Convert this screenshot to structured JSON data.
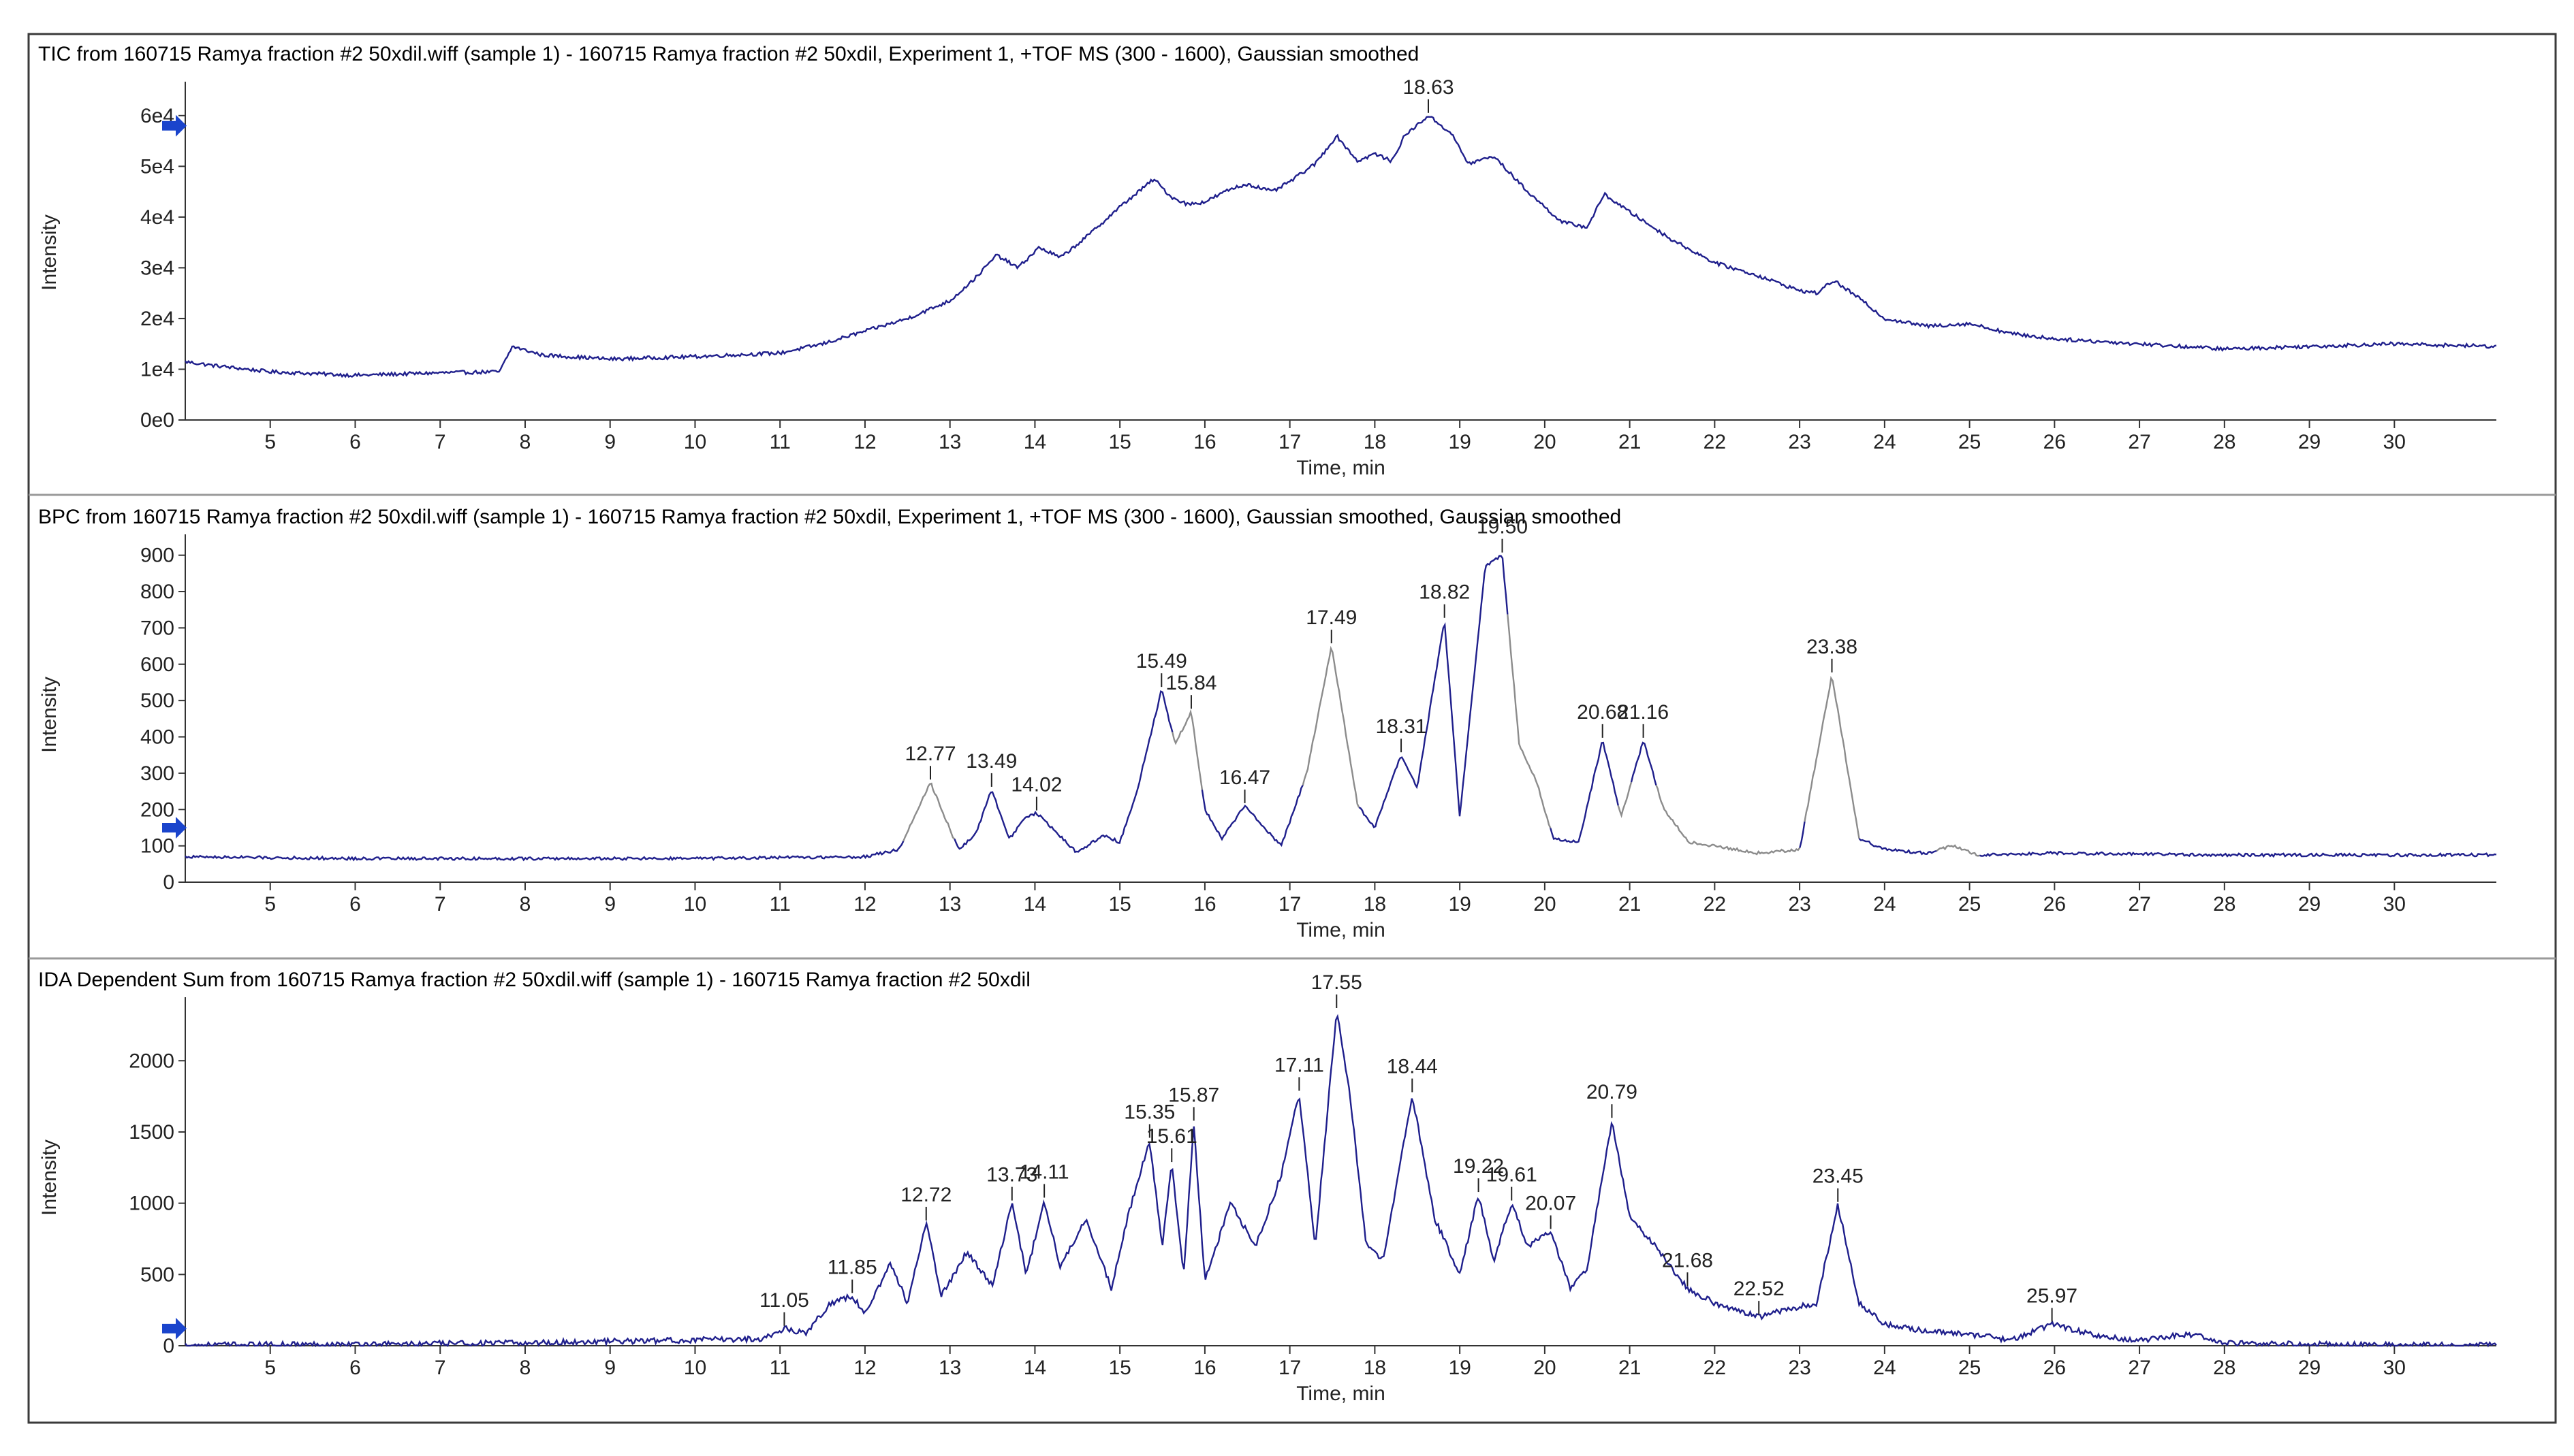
{
  "colors": {
    "trace": "#1f1f8c",
    "trace_alt": "#8c8c8c",
    "frame": "#3a3a3a",
    "marker": "#1a44cc"
  },
  "chart_data": [
    {
      "type": "line",
      "title": "TIC from 160715 Ramya fraction #2 50xdil.wiff (sample 1) - 160715 Ramya fraction #2 50xdil, Experiment 1, +TOF MS (300 - 1600), Gaussian smoothed",
      "xlabel": "Time, min",
      "ylabel": "Intensity",
      "xlim": [
        4.0,
        31.2
      ],
      "ylim": [
        0,
        64000
      ],
      "xticks": [
        "5",
        "6",
        "7",
        "8",
        "9",
        "10",
        "11",
        "12",
        "13",
        "14",
        "15",
        "16",
        "17",
        "18",
        "19",
        "20",
        "21",
        "22",
        "23",
        "24",
        "25",
        "26",
        "27",
        "28",
        "29",
        "30"
      ],
      "yticks": [
        {
          "v": 0,
          "t": "0e0"
        },
        {
          "v": 10000,
          "t": "1e4"
        },
        {
          "v": 20000,
          "t": "2e4"
        },
        {
          "v": 30000,
          "t": "3e4"
        },
        {
          "v": 40000,
          "t": "4e4"
        },
        {
          "v": 50000,
          "t": "5e4"
        },
        {
          "v": 60000,
          "t": "6e4"
        }
      ],
      "marker_value": 58000,
      "noise": 350,
      "series": [
        {
          "name": "TIC",
          "style": "plain",
          "x": [
            4.0,
            4.3,
            5.0,
            6.0,
            7.0,
            7.7,
            7.85,
            8.2,
            9.0,
            10.0,
            11.0,
            11.5,
            12.0,
            12.5,
            13.0,
            13.3,
            13.55,
            13.8,
            14.05,
            14.3,
            14.6,
            15.0,
            15.4,
            15.6,
            15.8,
            16.0,
            16.3,
            16.5,
            16.8,
            17.0,
            17.3,
            17.55,
            17.8,
            18.0,
            18.2,
            18.35,
            18.63,
            18.9,
            19.1,
            19.4,
            19.8,
            20.2,
            20.5,
            20.7,
            21.0,
            21.5,
            22.0,
            22.5,
            23.0,
            23.2,
            23.4,
            23.7,
            24.0,
            24.5,
            25.0,
            25.5,
            26.0,
            27.0,
            28.0,
            29.0,
            30.0,
            31.2
          ],
          "y": [
            11500,
            10800,
            9500,
            8800,
            9300,
            9500,
            14500,
            12800,
            12000,
            12500,
            13200,
            15000,
            17500,
            20000,
            23500,
            28000,
            32500,
            30000,
            34000,
            32000,
            36000,
            42000,
            47500,
            44000,
            42500,
            43000,
            45500,
            46500,
            45000,
            47000,
            50500,
            56000,
            51000,
            52500,
            51000,
            56000,
            60000,
            56500,
            50500,
            52000,
            45000,
            39000,
            38000,
            44500,
            41000,
            35500,
            31000,
            28500,
            25500,
            25000,
            27500,
            24000,
            20000,
            18500,
            19000,
            17000,
            16000,
            15000,
            14000,
            14500,
            15000,
            14500
          ]
        }
      ],
      "peaks": [
        {
          "x": 18.63,
          "y": 60000,
          "label": "18.63"
        }
      ]
    },
    {
      "type": "line",
      "title": "BPC from 160715 Ramya fraction #2 50xdil.wiff (sample 1) - 160715 Ramya fraction #2 50xdil, Experiment 1, +TOF MS (300 - 1600), Gaussian smoothed, Gaussian smoothed",
      "xlabel": "Time, min",
      "ylabel": "Intensity",
      "xlim": [
        4.0,
        31.2
      ],
      "ylim": [
        0,
        920
      ],
      "xticks": [
        "5",
        "6",
        "7",
        "8",
        "9",
        "10",
        "11",
        "12",
        "13",
        "14",
        "15",
        "16",
        "17",
        "18",
        "19",
        "20",
        "21",
        "22",
        "23",
        "24",
        "25",
        "26",
        "27",
        "28",
        "29",
        "30"
      ],
      "yticks": [
        {
          "v": 0,
          "t": "0"
        },
        {
          "v": 100,
          "t": "100"
        },
        {
          "v": 200,
          "t": "200"
        },
        {
          "v": 300,
          "t": "300"
        },
        {
          "v": 400,
          "t": "400"
        },
        {
          "v": 500,
          "t": "500"
        },
        {
          "v": 600,
          "t": "600"
        },
        {
          "v": 700,
          "t": "700"
        },
        {
          "v": 800,
          "t": "800"
        },
        {
          "v": 900,
          "t": "900"
        }
      ],
      "marker_value": 150,
      "noise": 4,
      "series": [
        {
          "name": "BPC",
          "style": "grey_peaks",
          "x": [
            4.0,
            6.0,
            8.0,
            10.0,
            12.0,
            12.4,
            12.77,
            13.1,
            13.3,
            13.49,
            13.7,
            13.9,
            14.02,
            14.2,
            14.5,
            14.8,
            15.0,
            15.2,
            15.49,
            15.65,
            15.84,
            16.0,
            16.2,
            16.47,
            16.7,
            16.9,
            17.2,
            17.49,
            17.8,
            18.0,
            18.31,
            18.5,
            18.7,
            18.82,
            19.0,
            19.3,
            19.5,
            19.7,
            19.9,
            20.1,
            20.4,
            20.68,
            20.9,
            21.16,
            21.4,
            21.7,
            22.0,
            22.5,
            23.0,
            23.38,
            23.7,
            24.0,
            24.5,
            24.8,
            25.1,
            26.0,
            28.0,
            31.2
          ],
          "y": [
            70,
            65,
            65,
            65,
            70,
            90,
            275,
            90,
            130,
            255,
            120,
            180,
            190,
            150,
            80,
            130,
            110,
            250,
            530,
            380,
            470,
            200,
            120,
            210,
            150,
            100,
            300,
            650,
            210,
            150,
            350,
            260,
            550,
            720,
            180,
            870,
            900,
            380,
            280,
            120,
            110,
            390,
            180,
            390,
            200,
            110,
            100,
            80,
            90,
            570,
            120,
            90,
            80,
            100,
            75,
            80,
            75,
            75
          ]
        }
      ],
      "peaks": [
        {
          "x": 12.77,
          "y": 275,
          "label": "12.77"
        },
        {
          "x": 13.49,
          "y": 255,
          "label": "13.49"
        },
        {
          "x": 14.02,
          "y": 190,
          "label": "14.02"
        },
        {
          "x": 15.49,
          "y": 530,
          "label": "15.49"
        },
        {
          "x": 15.84,
          "y": 470,
          "label": "15.84"
        },
        {
          "x": 16.47,
          "y": 210,
          "label": "16.47"
        },
        {
          "x": 17.49,
          "y": 650,
          "label": "17.49"
        },
        {
          "x": 18.31,
          "y": 350,
          "label": "18.31"
        },
        {
          "x": 18.82,
          "y": 720,
          "label": "18.82"
        },
        {
          "x": 19.5,
          "y": 900,
          "label": "19.50"
        },
        {
          "x": 20.68,
          "y": 390,
          "label": "20.68"
        },
        {
          "x": 21.16,
          "y": 390,
          "label": "21.16"
        },
        {
          "x": 23.38,
          "y": 570,
          "label": "23.38"
        }
      ]
    },
    {
      "type": "line",
      "title": "IDA Dependent Sum from 160715 Ramya fraction #2 50xdil.wiff (sample 1) - 160715 Ramya fraction #2 50xdil",
      "xlabel": "Time, min",
      "ylabel": "Intensity",
      "xlim": [
        4.0,
        31.2
      ],
      "ylim": [
        0,
        2350
      ],
      "xticks": [
        "5",
        "6",
        "7",
        "8",
        "9",
        "10",
        "11",
        "12",
        "13",
        "14",
        "15",
        "16",
        "17",
        "18",
        "19",
        "20",
        "21",
        "22",
        "23",
        "24",
        "25",
        "26",
        "27",
        "28",
        "29",
        "30"
      ],
      "yticks": [
        {
          "v": 0,
          "t": "0"
        },
        {
          "v": 500,
          "t": "500"
        },
        {
          "v": 1000,
          "t": "1000"
        },
        {
          "v": 1500,
          "t": "1500"
        },
        {
          "v": 2000,
          "t": "2000"
        }
      ],
      "marker_value": 120,
      "noise": 20,
      "series": [
        {
          "name": "IDA",
          "style": "spiky",
          "x": [
            4.0,
            6.0,
            8.0,
            9.0,
            10.0,
            10.8,
            11.05,
            11.3,
            11.6,
            11.85,
            12.0,
            12.3,
            12.5,
            12.72,
            12.9,
            13.2,
            13.5,
            13.73,
            13.9,
            14.11,
            14.3,
            14.6,
            14.9,
            15.1,
            15.35,
            15.5,
            15.61,
            15.75,
            15.87,
            16.0,
            16.3,
            16.6,
            16.9,
            17.11,
            17.3,
            17.55,
            17.7,
            17.9,
            18.1,
            18.44,
            18.7,
            19.0,
            19.22,
            19.4,
            19.61,
            19.8,
            20.07,
            20.3,
            20.5,
            20.79,
            21.0,
            21.3,
            21.68,
            22.0,
            22.52,
            22.8,
            23.2,
            23.45,
            23.7,
            24.0,
            24.5,
            25.0,
            25.5,
            25.97,
            26.5,
            27.0,
            27.6,
            28.0,
            29.0,
            31.2
          ],
          "y": [
            5,
            10,
            20,
            30,
            40,
            50,
            120,
            90,
            300,
            350,
            220,
            580,
            300,
            860,
            350,
            660,
            420,
            1000,
            500,
            1020,
            550,
            900,
            400,
            920,
            1440,
            700,
            1270,
            500,
            1560,
            450,
            1000,
            700,
            1200,
            1770,
            700,
            2350,
            1800,
            700,
            600,
            1760,
            900,
            500,
            1060,
            600,
            1000,
            700,
            800,
            400,
            550,
            1580,
            900,
            700,
            400,
            300,
            200,
            250,
            300,
            990,
            300,
            150,
            100,
            80,
            40,
            150,
            70,
            40,
            80,
            20,
            10,
            5
          ]
        }
      ],
      "peaks": [
        {
          "x": 11.05,
          "y": 120,
          "label": "11.05"
        },
        {
          "x": 11.85,
          "y": 350,
          "label": "11.85"
        },
        {
          "x": 12.72,
          "y": 860,
          "label": "12.72"
        },
        {
          "x": 13.73,
          "y": 1000,
          "label": "13.73"
        },
        {
          "x": 14.11,
          "y": 1020,
          "label": "14.11"
        },
        {
          "x": 15.35,
          "y": 1440,
          "label": "15.35"
        },
        {
          "x": 15.61,
          "y": 1270,
          "label": "15.61"
        },
        {
          "x": 15.87,
          "y": 1560,
          "label": "15.87"
        },
        {
          "x": 17.11,
          "y": 1770,
          "label": "17.11"
        },
        {
          "x": 17.55,
          "y": 2350,
          "label": "17.55"
        },
        {
          "x": 18.44,
          "y": 1760,
          "label": "18.44"
        },
        {
          "x": 19.22,
          "y": 1060,
          "label": "19.22"
        },
        {
          "x": 19.61,
          "y": 1000,
          "label": "19.61"
        },
        {
          "x": 20.07,
          "y": 800,
          "label": "20.07"
        },
        {
          "x": 20.79,
          "y": 1580,
          "label": "20.79"
        },
        {
          "x": 21.68,
          "y": 400,
          "label": "21.68"
        },
        {
          "x": 22.52,
          "y": 200,
          "label": "22.52"
        },
        {
          "x": 23.45,
          "y": 990,
          "label": "23.45"
        },
        {
          "x": 25.97,
          "y": 150,
          "label": "25.97"
        }
      ]
    }
  ]
}
